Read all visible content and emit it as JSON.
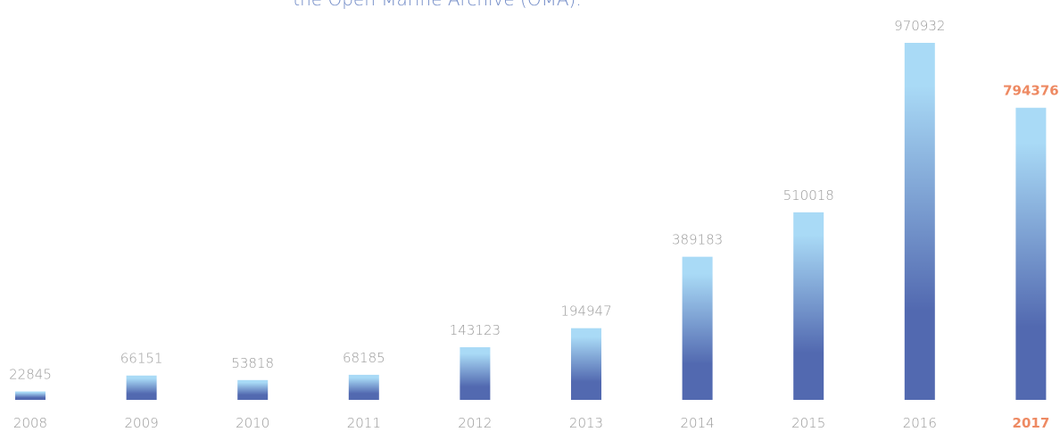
{
  "chart_data": {
    "type": "bar",
    "title": "the Open Marine Archive (OMA).",
    "categories": [
      "2008",
      "2009",
      "2010",
      "2011",
      "2012",
      "2013",
      "2014",
      "2015",
      "2016",
      "2017"
    ],
    "values": [
      22845,
      66151,
      53818,
      68185,
      143123,
      194947,
      389183,
      510018,
      970932,
      794376
    ],
    "color_top": "#a9daf6",
    "color_bottom": "#5269b0",
    "highlight_category": "2017",
    "highlight_color": "#ee8a63",
    "label_color": "#999999",
    "title_color": "#6f89c6"
  }
}
